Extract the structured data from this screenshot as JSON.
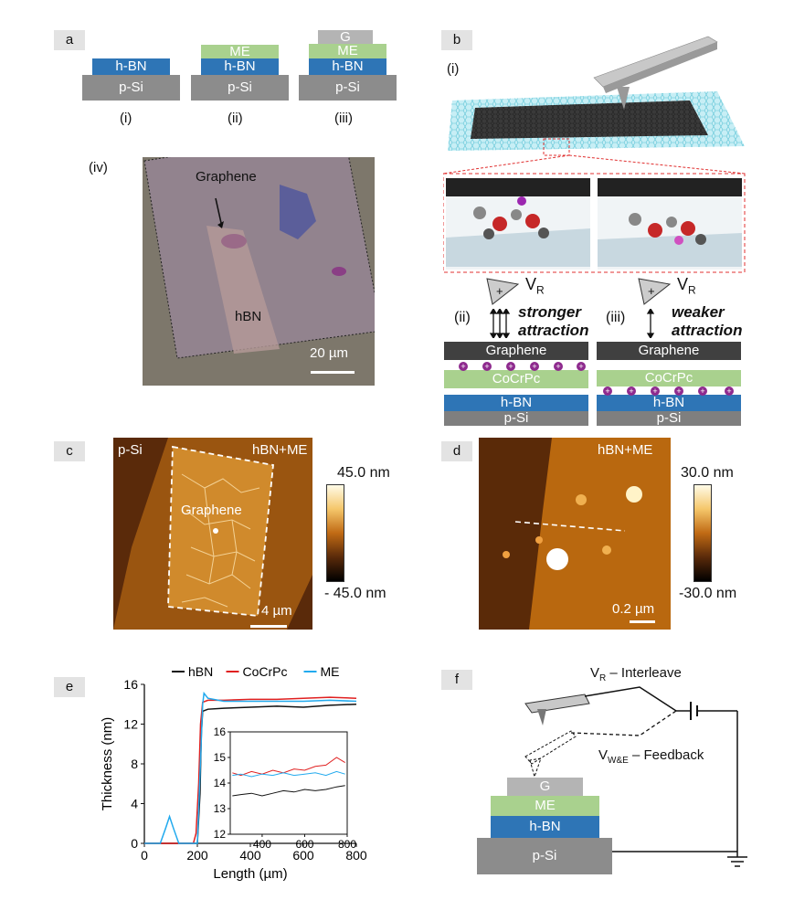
{
  "panel_labels": {
    "a": "a",
    "b": "b",
    "c": "c",
    "d": "d",
    "e": "e",
    "f": "f"
  },
  "panel_a": {
    "stacks": [
      {
        "roman": "(i)",
        "layers": [
          "h-BN",
          "p-Si"
        ]
      },
      {
        "roman": "(ii)",
        "layers": [
          "ME",
          "h-BN",
          "p-Si"
        ]
      },
      {
        "roman": "(iii)",
        "layers": [
          "G",
          "ME",
          "h-BN",
          "p-Si"
        ]
      }
    ],
    "optical": {
      "roman": "(iv)",
      "graphene": "Graphene",
      "hbn": "hBN",
      "scale": "20 µm"
    }
  },
  "panel_b": {
    "roman_i": "(i)",
    "case_ii": {
      "roman": "(ii)",
      "vr": "V",
      "vr_sub": "R",
      "text1": "stronger",
      "text2": "attraction"
    },
    "case_iii": {
      "roman": "(iii)",
      "vr": "V",
      "vr_sub": "R",
      "text1": "weaker",
      "text2": "attraction"
    },
    "layers": {
      "graphene": "Graphene",
      "cocrpc": "CoCrPc",
      "hbn": "h-BN",
      "psi": "p-Si"
    }
  },
  "panel_c": {
    "left": "p-Si",
    "right": "hBN+ME",
    "flake": "Graphene",
    "scale": "4 µm",
    "cbar_max": "45.0 nm",
    "cbar_min": "- 45.0 nm"
  },
  "panel_d": {
    "label": "hBN+ME",
    "scale": "0.2 µm",
    "cbar_max": "30.0 nm",
    "cbar_min": "-30.0 nm"
  },
  "panel_e": {
    "chart_data": {
      "type": "line",
      "xlabel": "Length (µm)",
      "ylabel": "Thickness (nm)",
      "xlim": [
        0,
        800
      ],
      "ylim": [
        0,
        16
      ],
      "xticks": [
        0,
        200,
        400,
        600,
        800
      ],
      "yticks": [
        0,
        4,
        8,
        12,
        16
      ],
      "legend": "top",
      "series": [
        {
          "name": "hBN",
          "color": "#111111",
          "x": [
            0,
            150,
            180,
            200,
            210,
            215,
            220,
            240,
            300,
            400,
            500,
            600,
            700,
            800
          ],
          "y": [
            0,
            0,
            0,
            0,
            5,
            11,
            13.3,
            13.5,
            13.6,
            13.7,
            13.8,
            13.7,
            13.9,
            14.0
          ]
        },
        {
          "name": "CoCrPc",
          "color": "#e02020",
          "x": [
            0,
            150,
            185,
            195,
            205,
            212,
            220,
            240,
            300,
            400,
            500,
            600,
            700,
            800
          ],
          "y": [
            0,
            0,
            0,
            1,
            6,
            12,
            14.2,
            14.4,
            14.4,
            14.5,
            14.5,
            14.6,
            14.7,
            14.6
          ]
        },
        {
          "name": "ME",
          "color": "#22aaee",
          "x": [
            0,
            60,
            80,
            95,
            110,
            130,
            170,
            200,
            210,
            220,
            225,
            240,
            300,
            400,
            500,
            600,
            700,
            800
          ],
          "y": [
            0,
            0,
            1.5,
            2.7,
            1.5,
            0,
            0,
            0,
            7,
            14,
            15.1,
            14.6,
            14.3,
            14.3,
            14.3,
            14.3,
            14.4,
            14.3
          ]
        }
      ],
      "inset": {
        "xlim": [
          250,
          800
        ],
        "ylim": [
          12,
          16
        ],
        "xticks": [
          400,
          600,
          800
        ],
        "yticks": [
          12,
          13,
          14,
          15,
          16
        ],
        "series": [
          {
            "name": "hBN",
            "color": "#111111",
            "x": [
              260,
              300,
              350,
              400,
              450,
              500,
              550,
              600,
              650,
              700,
              750,
              790
            ],
            "y": [
              13.5,
              13.55,
              13.6,
              13.5,
              13.6,
              13.7,
              13.65,
              13.75,
              13.7,
              13.75,
              13.85,
              13.9
            ]
          },
          {
            "name": "CoCrPc",
            "color": "#e02020",
            "x": [
              260,
              300,
              350,
              400,
              450,
              500,
              550,
              600,
              650,
              700,
              750,
              790
            ],
            "y": [
              14.4,
              14.3,
              14.45,
              14.35,
              14.5,
              14.4,
              14.55,
              14.5,
              14.65,
              14.7,
              15.0,
              14.8
            ]
          },
          {
            "name": "ME",
            "color": "#22aaee",
            "x": [
              260,
              300,
              350,
              400,
              450,
              500,
              550,
              600,
              650,
              700,
              750,
              790
            ],
            "y": [
              14.3,
              14.35,
              14.25,
              14.35,
              14.3,
              14.4,
              14.3,
              14.35,
              14.4,
              14.3,
              14.45,
              14.35
            ]
          }
        ]
      }
    }
  },
  "panel_f": {
    "top_label": "V",
    "top_sub": "R",
    "top_suffix": " – Interleave",
    "bottom_label": "V",
    "bottom_sub": "W&E",
    "bottom_suffix": " – Feedback",
    "layers": [
      "G",
      "ME",
      "h-BN",
      "p-Si"
    ]
  },
  "colors": {
    "hbn": "#2e75b6",
    "psi": "#8c8c8c",
    "me": "#a9d18e",
    "g": "#b4b4b4",
    "graphene_dark": "#404040",
    "purple": "#8e2a8e"
  }
}
